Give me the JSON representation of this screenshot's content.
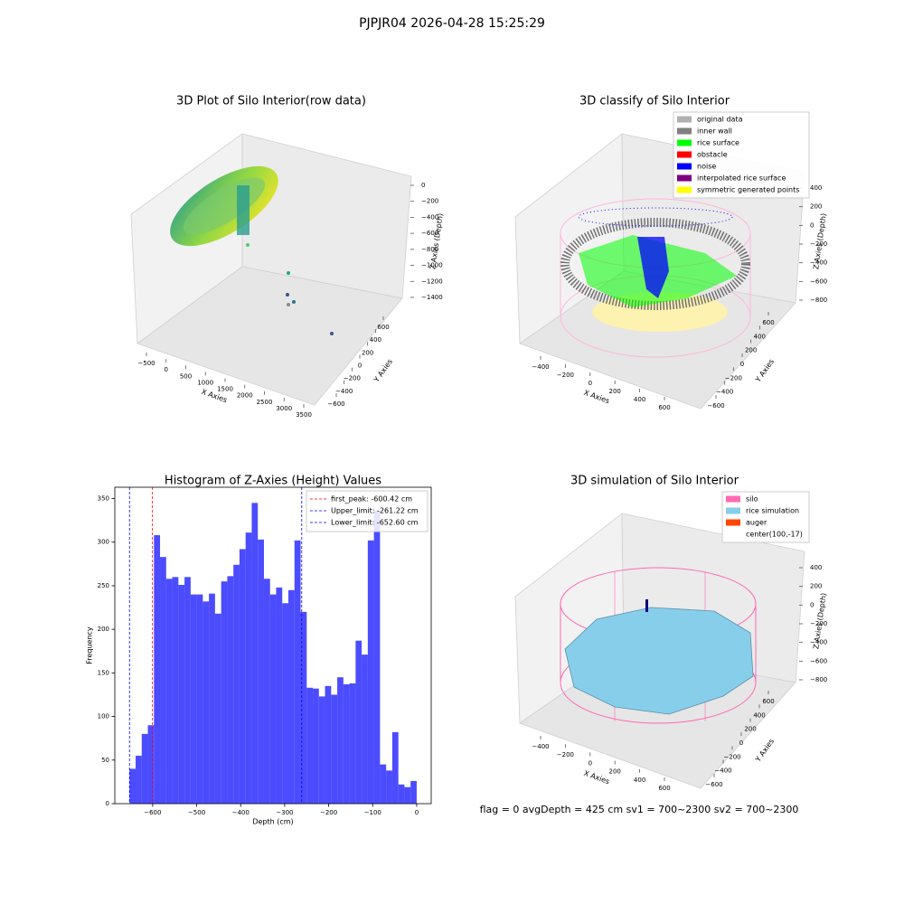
{
  "figure_title": "PJPJR04 2026-04-28 15:25:29",
  "footer": "flag = 0     avgDepth = 425 cm  sv1 = 700~2300  sv2 = 700~2300",
  "chart_data": [
    {
      "type": "scatter3d",
      "title": "3D Plot of Silo Interior(row data)",
      "xlabel": "X Axies",
      "ylabel": "Y Axies",
      "zlabel": "Z Axies (Depth)",
      "xticks": [
        {
          "value": -500,
          "label": "−500"
        },
        0,
        500,
        1000,
        1500,
        2000,
        2500,
        3000,
        3500
      ],
      "yticks": [
        {
          "value": -600,
          "label": "−600"
        },
        {
          "value": -400,
          "label": "−400"
        },
        {
          "value": -200,
          "label": "−200"
        },
        0,
        200,
        400,
        600
      ],
      "zticks": [
        0,
        {
          "value": -200,
          "label": "−200"
        },
        {
          "value": -400,
          "label": "−400"
        },
        {
          "value": -600,
          "label": "−600"
        },
        {
          "value": -800,
          "label": "−800"
        },
        {
          "value": -1000,
          "label": "−1000"
        },
        {
          "value": -1200,
          "label": "−1200"
        },
        {
          "value": -1400,
          "label": "−1400"
        }
      ]
    },
    {
      "type": "scatter3d",
      "title": "3D classify of Silo Interior",
      "xlabel": "X Axies",
      "ylabel": "Y Axies",
      "zlabel": "Z Axies (Depth)",
      "xticks": [
        {
          "value": -400,
          "label": "−400"
        },
        {
          "value": -200,
          "label": "−200"
        },
        0,
        200,
        400,
        600
      ],
      "yticks": [
        {
          "value": -600,
          "label": "−600"
        },
        {
          "value": -400,
          "label": "−400"
        },
        {
          "value": -200,
          "label": "−200"
        },
        0,
        200,
        400,
        600
      ],
      "zticks": [
        400,
        200,
        0,
        {
          "value": -200,
          "label": "−200"
        },
        {
          "value": -400,
          "label": "−400"
        },
        {
          "value": -600,
          "label": "−600"
        },
        {
          "value": -800,
          "label": "−800"
        }
      ],
      "series": [
        {
          "name": "original data",
          "color": "#b0b0b0"
        },
        {
          "name": "inner wall",
          "color": "#808080"
        },
        {
          "name": "rice surface",
          "color": "#00ff00"
        },
        {
          "name": "obstacle",
          "color": "#ff0000"
        },
        {
          "name": "noise",
          "color": "#0000ff"
        },
        {
          "name": "interpolated rice surface",
          "color": "#800080"
        },
        {
          "name": "symmetric generated points",
          "color": "#ffff00"
        }
      ]
    },
    {
      "type": "histogram",
      "title": "Histogram of Z-Axies (Height) Values",
      "xlabel": "Depth (cm)",
      "ylabel": "Frequency",
      "color": "#0000ff",
      "alpha": 0.7,
      "bins": [
        -652.6,
        -638.7,
        -624.8,
        -610.9,
        -597.1,
        -583.2,
        -569.3,
        -555.4,
        -541.5,
        -527.6,
        -513.7,
        -499.9,
        -486.0,
        -472.1,
        -458.2,
        -444.3,
        -430.4,
        -416.5,
        -402.7,
        -388.8,
        -374.9,
        -361.0,
        -347.1,
        -333.2,
        -319.4,
        -305.5,
        -291.6,
        -277.7,
        -263.8,
        -249.9,
        -236.0,
        -222.2,
        -208.3,
        -194.4,
        -180.5,
        -166.6,
        -152.7,
        -138.8,
        -125.0,
        -111.1,
        -97.2,
        -83.3,
        -69.4,
        -55.5,
        -41.6,
        -27.8,
        -13.9,
        0.0
      ],
      "counts": [
        40,
        55,
        80,
        90,
        308,
        283,
        258,
        260,
        251,
        260,
        240,
        240,
        232,
        241,
        218,
        255,
        261,
        274,
        292,
        311,
        345,
        303,
        258,
        240,
        248,
        230,
        245,
        302,
        220,
        133,
        132,
        123,
        135,
        125,
        145,
        137,
        138,
        187,
        171,
        302,
        336,
        45,
        38,
        82,
        22,
        19,
        26
      ],
      "xlim": [
        -686,
        33
      ],
      "ylim": [
        0,
        363
      ],
      "xticks": [
        {
          "value": -600,
          "label": "−600"
        },
        {
          "value": -500,
          "label": "−500"
        },
        {
          "value": -400,
          "label": "−400"
        },
        {
          "value": -300,
          "label": "−300"
        },
        {
          "value": -200,
          "label": "−200"
        },
        {
          "value": -100,
          "label": "−100"
        },
        0
      ],
      "yticks": [
        0,
        50,
        100,
        150,
        200,
        250,
        300,
        350
      ],
      "legend": "upper right",
      "vlines": [
        {
          "label": "first_peak: -600.42 cm",
          "value": -600.42,
          "color": "#ff0000"
        },
        {
          "label": "Upper_limit: -261.22 cm",
          "value": -261.22,
          "color": "#0000ff"
        },
        {
          "label": "Lower_limit: -652.60 cm",
          "value": -652.6,
          "color": "#0000ff"
        }
      ]
    },
    {
      "type": "surface3d",
      "title": "3D simulation of Silo Interior",
      "xlabel": "X Axies",
      "ylabel": "Y Axies",
      "zlabel": "Z Axies (Depth)",
      "xticks": [
        {
          "value": -400,
          "label": "−400"
        },
        {
          "value": -200,
          "label": "−200"
        },
        0,
        200,
        400,
        600
      ],
      "yticks": [
        {
          "value": -600,
          "label": "−600"
        },
        {
          "value": -400,
          "label": "−400"
        },
        {
          "value": -200,
          "label": "−200"
        },
        0,
        200,
        400,
        600
      ],
      "zticks": [
        400,
        200,
        0,
        {
          "value": -200,
          "label": "−200"
        },
        {
          "value": -400,
          "label": "−400"
        },
        {
          "value": -600,
          "label": "−600"
        },
        {
          "value": -800,
          "label": "−800"
        }
      ],
      "series": [
        {
          "name": "silo",
          "color": "#ff69b4"
        },
        {
          "name": "rice simulation",
          "color": "#87ceeb"
        },
        {
          "name": "auger",
          "color": "#ff4500"
        },
        {
          "name": "center(100,-17)",
          "color": "#ffffff"
        }
      ]
    }
  ]
}
